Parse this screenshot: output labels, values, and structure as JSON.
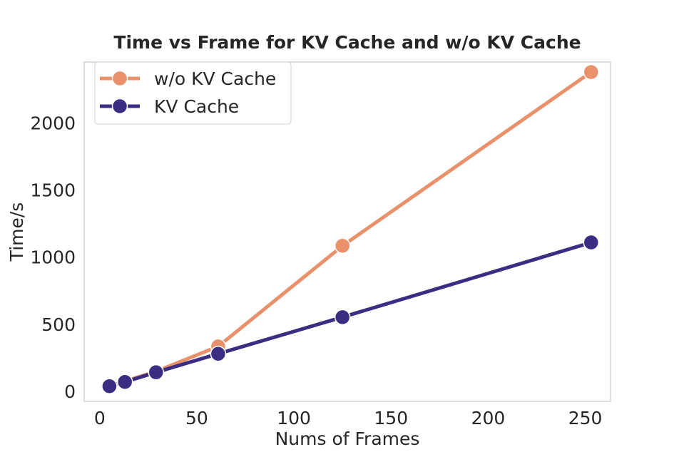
{
  "chart_data": {
    "type": "line",
    "title": "Time vs Frame for KV Cache and w/o KV Cache",
    "xlabel": "Nums of Frames",
    "ylabel": "Time/s",
    "xlim": [
      -8,
      263
    ],
    "ylim": [
      -75,
      2455
    ],
    "xticks": [
      0,
      50,
      100,
      150,
      200,
      250
    ],
    "yticks": [
      0,
      500,
      1000,
      1500,
      2000
    ],
    "grid": false,
    "legend_position": "top-left",
    "series": [
      {
        "name": "w/o KV Cache",
        "color": "#e8916a",
        "x": [
          5,
          13,
          29,
          61,
          125,
          253
        ],
        "y": [
          38,
          75,
          148,
          335,
          1085,
          2380
        ]
      },
      {
        "name": "KV Cache",
        "color": "#3b2d82",
        "x": [
          5,
          13,
          29,
          61,
          125,
          253
        ],
        "y": [
          38,
          70,
          142,
          280,
          553,
          1110
        ]
      }
    ]
  }
}
